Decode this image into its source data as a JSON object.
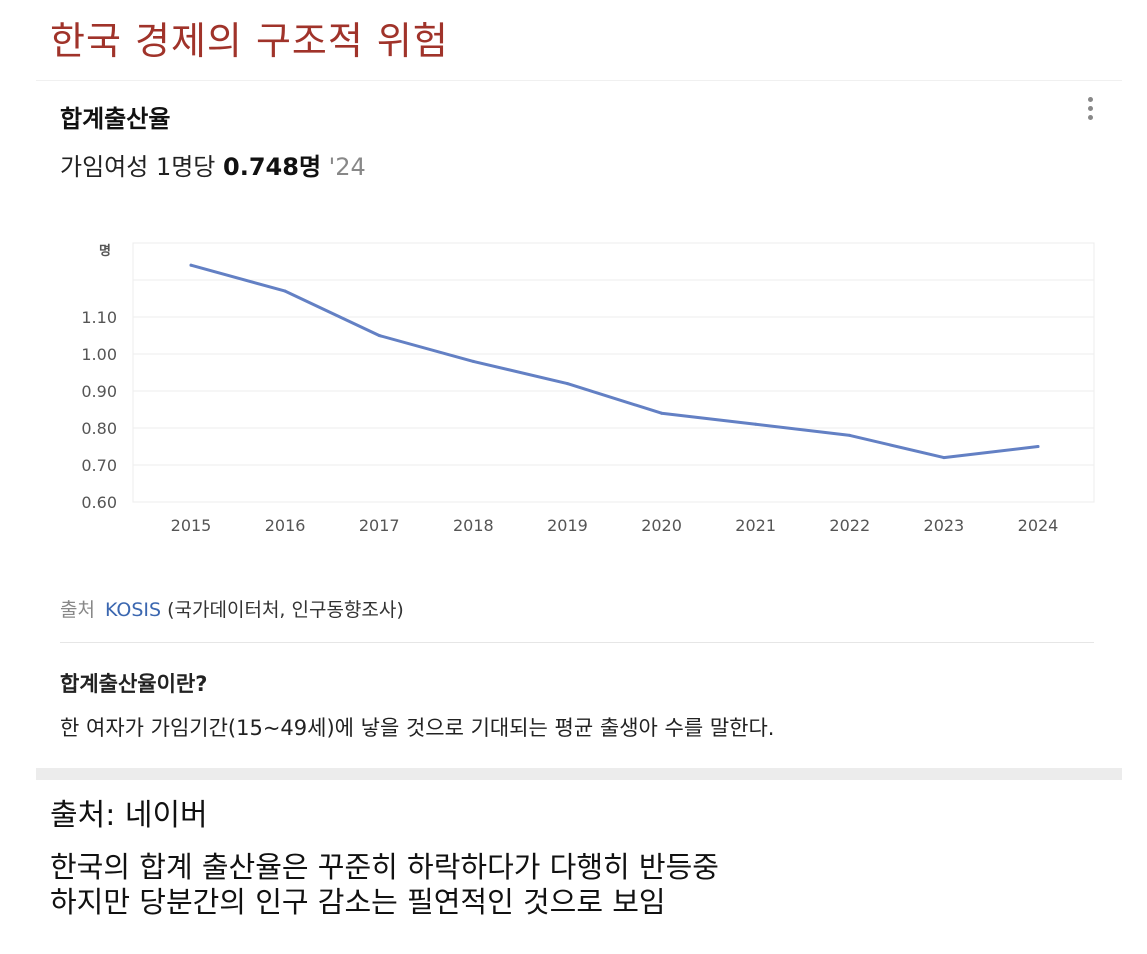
{
  "page_title": "한국 경제의 구조적 위험",
  "card": {
    "title": "합계출산율",
    "stat_prefix": "가임여성 1명당",
    "stat_value": "0.748명",
    "stat_year": "'24",
    "source_label": "출처",
    "source_link": "KOSIS",
    "source_detail": "(국가데이터처, 인구동향조사)",
    "definition_title": "합계출산율이란?",
    "definition_text": "한 여자가 가임기간(15~49세)에 낳을 것으로 기대되는 평균 출생아 수를 말한다."
  },
  "caption_source": "출처: 네이버",
  "caption_lines": [
    "한국의 합계 출산율은 꾸준히 하락하다가 다행히 반등중",
    "하지만 당분간의 인구 감소는 필연적인 것으로 보임"
  ],
  "chart_data": {
    "type": "line",
    "title": "합계출산율",
    "ylabel": "명",
    "xlabel": "",
    "categories": [
      "2015",
      "2016",
      "2017",
      "2018",
      "2019",
      "2020",
      "2021",
      "2022",
      "2023",
      "2024"
    ],
    "series": [
      {
        "name": "합계출산율",
        "values": [
          1.24,
          1.17,
          1.05,
          0.98,
          0.92,
          0.84,
          0.81,
          0.78,
          0.72,
          0.75
        ]
      }
    ],
    "yticks": [
      "0.60",
      "0.70",
      "0.80",
      "0.90",
      "1.00",
      "1.10"
    ],
    "ylim": [
      0.6,
      1.3
    ],
    "grid": true,
    "line_color": "#6380c4"
  }
}
